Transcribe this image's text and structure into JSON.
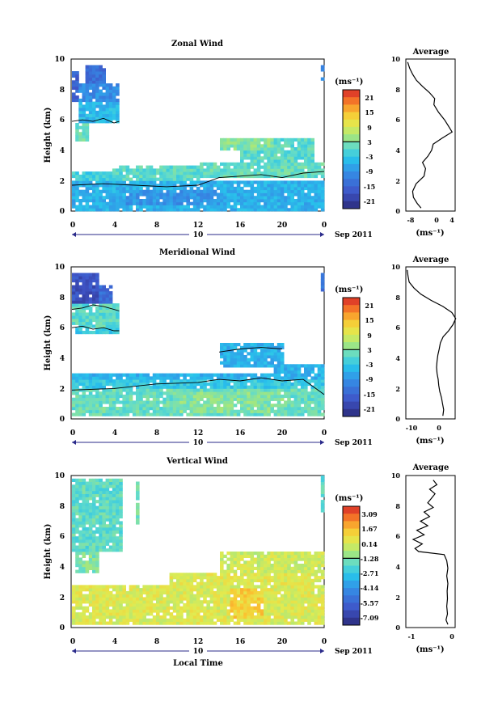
{
  "chart_data": [
    {
      "type": "heatmap",
      "title": "Zonal Wind",
      "ylabel": "Height (km)",
      "xlabel": "",
      "x_ticks": [
        "0",
        "4",
        "8",
        "12",
        "16",
        "20",
        "0"
      ],
      "y_ticks": [
        "0",
        "2",
        "4",
        "6",
        "8",
        "10"
      ],
      "xlim": [
        0,
        24
      ],
      "ylim": [
        0,
        10
      ],
      "date_day": "10",
      "date_label": "Sep 2011",
      "colorbar": {
        "unit": "(ms⁻¹)",
        "ticks": [
          "21",
          "15",
          "9",
          "3",
          "-3",
          "-9",
          "-15",
          "-21"
        ],
        "vmin": -24,
        "vmax": 24,
        "zero_line": 3
      },
      "regions": [
        {
          "t0": 0,
          "t1": 0.4,
          "h0": 7.2,
          "h1": 9.2,
          "v": -16
        },
        {
          "t0": 0.4,
          "t1": 4.2,
          "h0": 7.2,
          "h1": 8.3,
          "v": -10
        },
        {
          "t0": 0.4,
          "t1": 4.4,
          "h0": 5.8,
          "h1": 7.2,
          "v": -5
        },
        {
          "t0": 1.0,
          "t1": 3.0,
          "h0": 8.3,
          "h1": 9.5,
          "v": -14
        },
        {
          "t0": 0.2,
          "t1": 1.6,
          "h0": 4.6,
          "h1": 5.8,
          "v": 1
        },
        {
          "t0": 0,
          "t1": 3.8,
          "h0": 1.8,
          "h1": 2.6,
          "v": -2
        },
        {
          "t0": 3.8,
          "t1": 12,
          "h0": 1.8,
          "h1": 3.0,
          "v": 0
        },
        {
          "t0": 12,
          "t1": 24,
          "h0": 2.0,
          "h1": 3.2,
          "v": 1
        },
        {
          "t0": 0,
          "t1": 24,
          "h0": 0,
          "h1": 1.8,
          "v": -6
        },
        {
          "t0": 5,
          "t1": 14,
          "h0": 0.4,
          "h1": 1.4,
          "v": -9
        },
        {
          "t0": 16,
          "t1": 23,
          "h0": 3.2,
          "h1": 4.7,
          "v": 0
        },
        {
          "t0": 14,
          "t1": 19,
          "h0": 4.0,
          "h1": 4.8,
          "v": 3
        },
        {
          "t0": 23.6,
          "t1": 24,
          "h0": 8.5,
          "h1": 9.5,
          "v": -12
        }
      ],
      "contours": [
        {
          "t": [
            0,
            1,
            2,
            3,
            4,
            4.5
          ],
          "h": [
            5.9,
            6.0,
            5.9,
            6.1,
            5.8,
            5.9
          ]
        },
        {
          "t": [
            0,
            3,
            6,
            9,
            12,
            14,
            16,
            18,
            20,
            22,
            24
          ],
          "h": [
            1.7,
            1.8,
            1.7,
            1.6,
            1.7,
            2.2,
            2.3,
            2.4,
            2.2,
            2.5,
            2.6
          ]
        }
      ],
      "profile": {
        "title": "Average",
        "xlabel": "(ms⁻¹)",
        "x_ticks": [
          "-8",
          "0",
          "4"
        ],
        "xlim": [
          -8,
          5
        ],
        "height": [
          0.2,
          0.5,
          0.9,
          1.3,
          1.8,
          2.3,
          2.8,
          3.2,
          3.6,
          4.0,
          4.4,
          4.8,
          5.2,
          5.6,
          6.0,
          6.5,
          7.0,
          7.4,
          7.8,
          8.2,
          8.6,
          9.0,
          9.4,
          9.8
        ],
        "value": [
          -4,
          -5,
          -6,
          -6.2,
          -5.3,
          -3.2,
          -2.8,
          -3.6,
          -2.2,
          -1.2,
          -0.8,
          1.6,
          4.2,
          3.2,
          2.2,
          0.6,
          -0.6,
          -0.4,
          -1.8,
          -3.6,
          -5.2,
          -6.2,
          -7.0,
          -7.5
        ]
      }
    },
    {
      "type": "heatmap",
      "title": "Meridional Wind",
      "ylabel": "Height (km)",
      "xlabel": "",
      "x_ticks": [
        "0",
        "4",
        "8",
        "12",
        "16",
        "20",
        "0"
      ],
      "y_ticks": [
        "0",
        "2",
        "4",
        "6",
        "8",
        "10"
      ],
      "xlim": [
        0,
        24
      ],
      "ylim": [
        0,
        10
      ],
      "date_day": "10",
      "date_label": "Sep 2011",
      "colorbar": {
        "unit": "(ms⁻¹)",
        "ticks": [
          "21",
          "15",
          "9",
          "3",
          "-3",
          "-9",
          "-15",
          "-21"
        ],
        "vmin": -24,
        "vmax": 24,
        "zero_line": 3
      },
      "regions": [
        {
          "t0": 0,
          "t1": 2.5,
          "h0": 7.6,
          "h1": 9.5,
          "v": -18
        },
        {
          "t0": 2.5,
          "t1": 3.8,
          "h0": 7.6,
          "h1": 8.8,
          "v": -14
        },
        {
          "t0": 0,
          "t1": 4.3,
          "h0": 6.0,
          "h1": 7.6,
          "v": 0
        },
        {
          "t0": 0.2,
          "t1": 4.3,
          "h0": 5.6,
          "h1": 6.0,
          "v": -3
        },
        {
          "t0": 0,
          "t1": 24,
          "h0": 2.6,
          "h1": 3.0,
          "v": -6
        },
        {
          "t0": 0,
          "t1": 24,
          "h0": 1.8,
          "h1": 2.6,
          "v": -3
        },
        {
          "t0": 0,
          "t1": 24,
          "h0": 0.2,
          "h1": 1.8,
          "v": 1
        },
        {
          "t0": 10,
          "t1": 20,
          "h0": 0.4,
          "h1": 1.6,
          "v": 3
        },
        {
          "t0": 14,
          "t1": 20,
          "h0": 3.4,
          "h1": 5.0,
          "v": -6
        },
        {
          "t0": 19,
          "t1": 24,
          "h0": 3.0,
          "h1": 3.5,
          "v": -6
        },
        {
          "t0": 23.6,
          "t1": 24,
          "h0": 8.4,
          "h1": 9.5,
          "v": -14
        }
      ],
      "contours": [
        {
          "t": [
            0,
            1,
            2,
            3,
            4,
            4.5
          ],
          "h": [
            7.2,
            7.3,
            7.5,
            7.4,
            7.2,
            7.1
          ]
        },
        {
          "t": [
            0,
            1,
            2,
            3,
            4,
            4.5
          ],
          "h": [
            6.0,
            6.1,
            5.9,
            6.0,
            5.8,
            5.8
          ]
        },
        {
          "t": [
            0,
            4,
            8,
            12,
            14,
            16,
            18,
            20,
            22,
            24
          ],
          "h": [
            1.9,
            2.0,
            2.3,
            2.4,
            2.6,
            2.5,
            2.7,
            2.5,
            2.6,
            1.6
          ]
        },
        {
          "t": [
            14,
            16,
            18,
            20
          ],
          "h": [
            4.4,
            4.6,
            4.7,
            4.6
          ]
        }
      ],
      "profile": {
        "title": "Average",
        "xlabel": "(ms⁻¹)",
        "x_ticks": [
          "-10",
          "0"
        ],
        "xlim": [
          -12,
          6
        ],
        "height": [
          0.2,
          0.6,
          1.0,
          1.4,
          1.8,
          2.2,
          2.6,
          3.0,
          3.4,
          3.8,
          4.2,
          4.6,
          5.0,
          5.4,
          5.8,
          6.2,
          6.6,
          7.0,
          7.4,
          7.8,
          8.2,
          8.6,
          9.0,
          9.4,
          9.8
        ],
        "value": [
          1.5,
          1.8,
          1.4,
          1.0,
          0.4,
          0.0,
          -0.2,
          -0.6,
          -0.8,
          -0.6,
          -0.3,
          0.2,
          0.6,
          1.6,
          3.6,
          5.2,
          6.2,
          4.8,
          1.5,
          -2.8,
          -6.5,
          -9.0,
          -10.8,
          -11.2,
          -11.5
        ]
      }
    },
    {
      "type": "heatmap",
      "title": "Vertical Wind",
      "ylabel": "Height (km)",
      "xlabel": "Local Time",
      "x_ticks": [
        "0",
        "4",
        "8",
        "12",
        "16",
        "20",
        "0"
      ],
      "y_ticks": [
        "0",
        "2",
        "4",
        "6",
        "8",
        "10"
      ],
      "xlim": [
        0,
        24
      ],
      "ylim": [
        0,
        10
      ],
      "date_day": "10",
      "date_label": "Sep 2011",
      "colorbar": {
        "unit": "(ms⁻¹)",
        "ticks": [
          "3.09",
          "1.67",
          "0.14",
          "-1.28",
          "-2.71",
          "-4.14",
          "-5.57",
          "-7.09"
        ],
        "vmin": -7.8,
        "vmax": 3.8,
        "zero_line": -1.28
      },
      "regions": [
        {
          "t0": 0,
          "t1": 4.5,
          "h0": 5.0,
          "h1": 9.6,
          "v": -1.9
        },
        {
          "t0": 0.3,
          "t1": 2.5,
          "h0": 3.6,
          "h1": 5.0,
          "v": -1.4
        },
        {
          "t0": 0,
          "t1": 24,
          "h0": 0.2,
          "h1": 2.8,
          "v": 0.2
        },
        {
          "t0": 9,
          "t1": 24,
          "h0": 2.8,
          "h1": 3.5,
          "v": 0.3
        },
        {
          "t0": 14,
          "t1": 24,
          "h0": 3.5,
          "h1": 5.0,
          "v": -0.1
        },
        {
          "t0": 15,
          "t1": 18,
          "h0": 0.6,
          "h1": 2.6,
          "v": 1.1
        },
        {
          "t0": 23.6,
          "t1": 24,
          "h0": 7.5,
          "h1": 9.8,
          "v": -1.9
        },
        {
          "t0": 6,
          "t1": 6.4,
          "h0": 6.8,
          "h1": 9.4,
          "v": -1.6
        }
      ],
      "contours": [],
      "profile": {
        "title": "Average",
        "xlabel": "(ms⁻¹)",
        "x_ticks": [
          "-1",
          "0"
        ],
        "xlim": [
          -1.2,
          0.15
        ],
        "height": [
          0.2,
          0.5,
          0.9,
          1.4,
          1.9,
          2.4,
          2.9,
          3.4,
          3.9,
          4.4,
          4.8,
          5.0,
          5.2,
          5.5,
          5.8,
          6.1,
          6.4,
          6.7,
          7.0,
          7.3,
          7.6,
          7.9,
          8.2,
          8.5,
          8.8,
          9.1,
          9.4,
          9.7
        ],
        "value": [
          -0.05,
          -0.1,
          -0.06,
          -0.08,
          -0.06,
          -0.07,
          -0.05,
          -0.08,
          -0.05,
          -0.08,
          -0.15,
          -0.85,
          -0.95,
          -0.75,
          -1.0,
          -0.7,
          -0.9,
          -0.6,
          -0.8,
          -0.55,
          -0.7,
          -0.45,
          -0.6,
          -0.5,
          -0.4,
          -0.55,
          -0.35,
          -0.45
        ]
      }
    }
  ]
}
